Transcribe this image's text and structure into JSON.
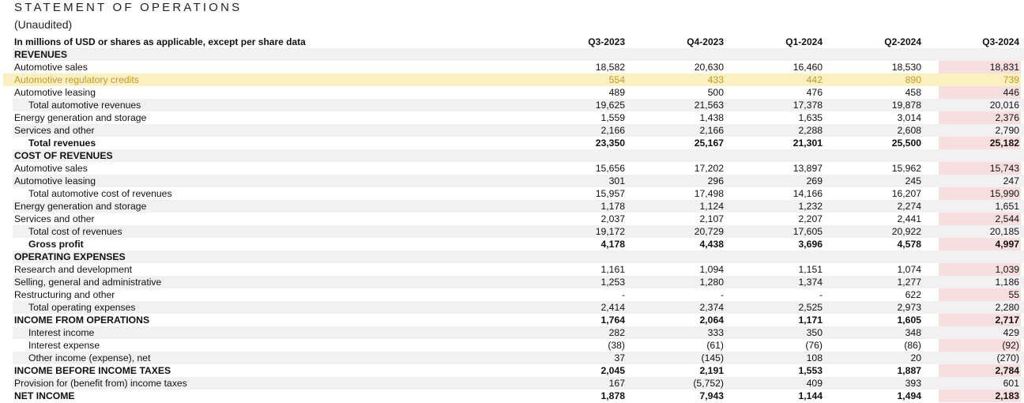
{
  "title": "STATEMENT OF OPERATIONS",
  "subtitle": "(Unaudited)",
  "units_label": "In millions of USD or shares as applicable, except per share data",
  "periods": [
    "Q3-2023",
    "Q4-2023",
    "Q1-2024",
    "Q2-2024",
    "Q3-2024"
  ],
  "colors": {
    "band": "#f1f1f1",
    "highlight_row": "#fbf0bf",
    "highlight_text": "#c49a2a",
    "highlight_column": "#f7dfe0"
  },
  "rows": [
    {
      "label": "REVENUES",
      "type": "section",
      "values": [
        "",
        "",
        "",
        "",
        ""
      ]
    },
    {
      "label": "Automotive sales",
      "type": "item",
      "values": [
        "18,582",
        "20,630",
        "16,460",
        "18,530",
        "18,831"
      ]
    },
    {
      "label": "Automotive regulatory credits",
      "type": "item",
      "highlight": true,
      "values": [
        "554",
        "433",
        "442",
        "890",
        "739"
      ]
    },
    {
      "label": "Automotive leasing",
      "type": "item",
      "values": [
        "489",
        "500",
        "476",
        "458",
        "446"
      ]
    },
    {
      "label": "Total automotive revenues",
      "type": "sub",
      "values": [
        "19,625",
        "21,563",
        "17,378",
        "19,878",
        "20,016"
      ]
    },
    {
      "label": "Energy generation and storage",
      "type": "item",
      "values": [
        "1,559",
        "1,438",
        "1,635",
        "3,014",
        "2,376"
      ]
    },
    {
      "label": "Services and other",
      "type": "item",
      "values": [
        "2,166",
        "2,166",
        "2,288",
        "2,608",
        "2,790"
      ]
    },
    {
      "label": "Total revenues",
      "type": "subbold",
      "values": [
        "23,350",
        "25,167",
        "21,301",
        "25,500",
        "25,182"
      ]
    },
    {
      "label": "COST OF REVENUES",
      "type": "section",
      "values": [
        "",
        "",
        "",
        "",
        ""
      ]
    },
    {
      "label": "Automotive sales",
      "type": "item",
      "values": [
        "15,656",
        "17,202",
        "13,897",
        "15,962",
        "15,743"
      ]
    },
    {
      "label": "Automotive leasing",
      "type": "item",
      "values": [
        "301",
        "296",
        "269",
        "245",
        "247"
      ]
    },
    {
      "label": "Total automotive cost of revenues",
      "type": "sub",
      "values": [
        "15,957",
        "17,498",
        "14,166",
        "16,207",
        "15,990"
      ]
    },
    {
      "label": "Energy generation and storage",
      "type": "item",
      "values": [
        "1,178",
        "1,124",
        "1,232",
        "2,274",
        "1,651"
      ]
    },
    {
      "label": "Services and other",
      "type": "item",
      "values": [
        "2,037",
        "2,107",
        "2,207",
        "2,441",
        "2,544"
      ]
    },
    {
      "label": "Total cost of revenues",
      "type": "sub",
      "values": [
        "19,172",
        "20,729",
        "17,605",
        "20,922",
        "20,185"
      ]
    },
    {
      "label": "Gross profit",
      "type": "subbold",
      "values": [
        "4,178",
        "4,438",
        "3,696",
        "4,578",
        "4,997"
      ]
    },
    {
      "label": "OPERATING EXPENSES",
      "type": "section",
      "values": [
        "",
        "",
        "",
        "",
        ""
      ]
    },
    {
      "label": "Research and development",
      "type": "item",
      "values": [
        "1,161",
        "1,094",
        "1,151",
        "1,074",
        "1,039"
      ]
    },
    {
      "label": "Selling, general and administrative",
      "type": "item",
      "values": [
        "1,253",
        "1,280",
        "1,374",
        "1,277",
        "1,186"
      ]
    },
    {
      "label": "Restructuring and other",
      "type": "item",
      "values": [
        "-",
        "-",
        "-",
        "622",
        "55"
      ]
    },
    {
      "label": "Total operating expenses",
      "type": "sub",
      "values": [
        "2,414",
        "2,374",
        "2,525",
        "2,973",
        "2,280"
      ]
    },
    {
      "label": "INCOME FROM OPERATIONS",
      "type": "bold",
      "values": [
        "1,764",
        "2,064",
        "1,171",
        "1,605",
        "2,717"
      ]
    },
    {
      "label": "Interest income",
      "type": "sub",
      "values": [
        "282",
        "333",
        "350",
        "348",
        "429"
      ]
    },
    {
      "label": "Interest expense",
      "type": "sub",
      "values": [
        "(38)",
        "(61)",
        "(76)",
        "(86)",
        "(92)"
      ]
    },
    {
      "label": "Other income (expense), net",
      "type": "sub",
      "values": [
        "37",
        "(145)",
        "108",
        "20",
        "(270)"
      ]
    },
    {
      "label": "INCOME BEFORE INCOME TAXES",
      "type": "bold",
      "values": [
        "2,045",
        "2,191",
        "1,553",
        "1,887",
        "2,784"
      ]
    },
    {
      "label": "Provision for (benefit from) income taxes",
      "type": "item",
      "values": [
        "167",
        "(5,752)",
        "409",
        "393",
        "601"
      ]
    },
    {
      "label": "NET INCOME",
      "type": "bold",
      "values": [
        "1,878",
        "7,943",
        "1,144",
        "1,494",
        "2,183"
      ]
    }
  ]
}
